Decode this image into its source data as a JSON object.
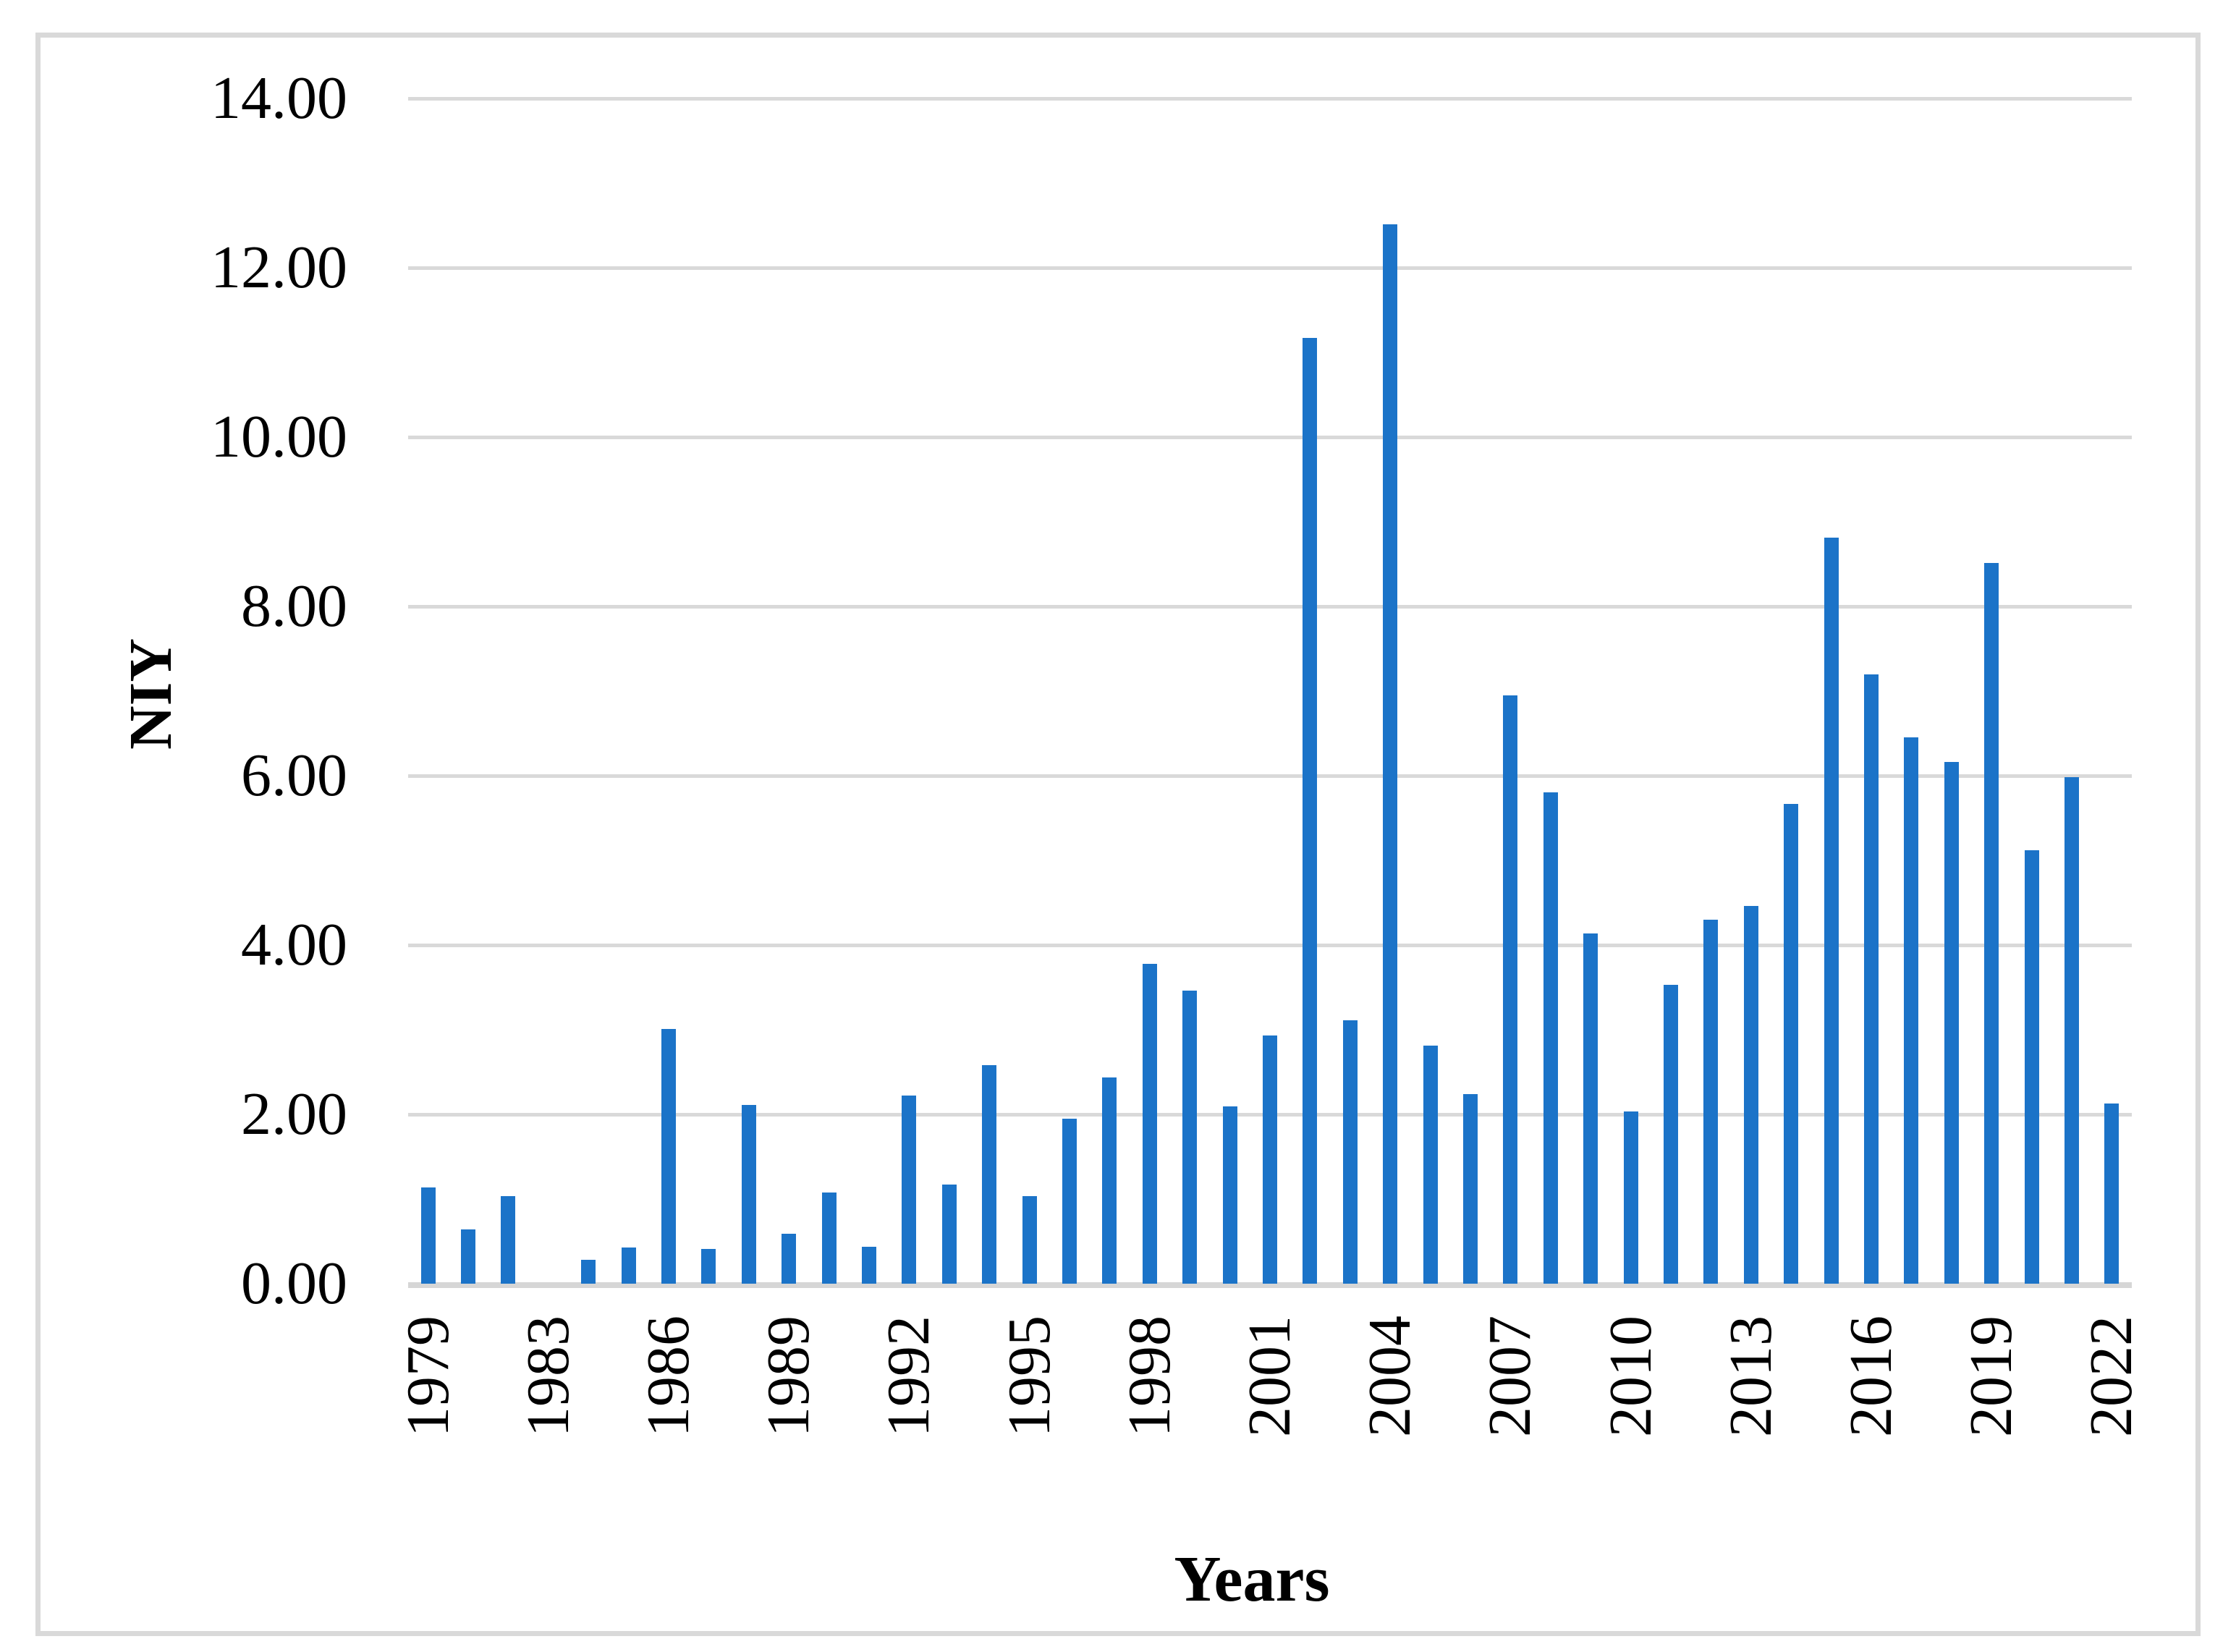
{
  "chart_data": {
    "type": "bar",
    "title": "",
    "xlabel": "Years",
    "ylabel": "NIY",
    "categories": [
      "1979",
      "1980",
      "1981",
      "1983",
      "1984",
      "1985",
      "1986",
      "1987",
      "1988",
      "1989",
      "1990",
      "1991",
      "1992",
      "1993",
      "1994",
      "1995",
      "1996",
      "1997",
      "1998",
      "1999",
      "2000",
      "2001",
      "2002",
      "2003",
      "2004",
      "2005",
      "2006",
      "2007",
      "2008",
      "2009",
      "2010",
      "2011",
      "2012",
      "2013",
      "2014",
      "2015",
      "2016",
      "2017",
      "2018",
      "2019",
      "2020",
      "2021",
      "2022"
    ],
    "values": [
      1.14,
      0.64,
      1.03,
      0.0,
      0.28,
      0.43,
      3.01,
      0.41,
      2.11,
      0.59,
      1.08,
      0.44,
      2.22,
      1.17,
      2.58,
      1.03,
      1.95,
      2.44,
      3.78,
      3.46,
      2.09,
      2.93,
      11.17,
      3.11,
      12.51,
      2.81,
      2.24,
      6.95,
      5.8,
      4.14,
      2.03,
      3.53,
      4.3,
      4.46,
      5.67,
      8.81,
      7.2,
      6.45,
      6.16,
      8.51,
      5.12,
      5.98,
      2.13
    ],
    "y_ticks": [
      "14.00",
      "12.00",
      "10.00",
      "8.00",
      "6.00",
      "4.00",
      "2.00",
      "0.00"
    ],
    "ylim": [
      0,
      14
    ],
    "x_label_interval": 3,
    "grid": true,
    "legend_position": "none",
    "colors": {
      "bar": "#1B73C8",
      "gridline": "#D9D9D9",
      "baseline": "#D6D6D6",
      "border": "#D9D9D9",
      "text": "#000000"
    }
  }
}
